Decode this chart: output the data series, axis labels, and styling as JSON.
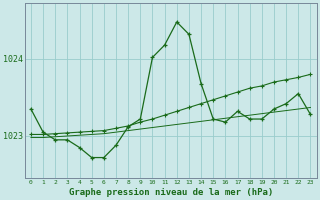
{
  "background_color": "#cce8e8",
  "grid_color": "#99cccc",
  "line_color": "#1a6b1a",
  "xlabel": "Graphe pression niveau de la mer (hPa)",
  "xlabel_fontsize": 6.5,
  "ytick_labels": [
    "1023",
    "1024"
  ],
  "ytick_values": [
    1023.0,
    1024.0
  ],
  "ylim": [
    1022.45,
    1024.72
  ],
  "xlim": [
    -0.5,
    23.5
  ],
  "line1_y": [
    1023.35,
    1023.05,
    1022.95,
    1022.95,
    1022.85,
    1022.72,
    1022.72,
    1022.88,
    1023.12,
    1023.22,
    1024.02,
    1024.18,
    1024.48,
    1024.32,
    1023.68,
    1023.22,
    1023.18,
    1023.32,
    1023.22,
    1023.22,
    1023.35,
    1023.42,
    1023.55,
    1023.28
  ],
  "line2_y": [
    1023.02,
    1023.02,
    1023.03,
    1023.04,
    1023.05,
    1023.06,
    1023.07,
    1023.1,
    1023.13,
    1023.18,
    1023.22,
    1023.27,
    1023.32,
    1023.37,
    1023.42,
    1023.47,
    1023.52,
    1023.57,
    1023.62,
    1023.65,
    1023.7,
    1023.73,
    1023.76,
    1023.8
  ],
  "line3_y": [
    1022.98,
    1022.98,
    1022.99,
    1023.0,
    1023.01,
    1023.02,
    1023.03,
    1023.05,
    1023.07,
    1023.09,
    1023.11,
    1023.13,
    1023.15,
    1023.17,
    1023.19,
    1023.21,
    1023.23,
    1023.25,
    1023.27,
    1023.29,
    1023.31,
    1023.33,
    1023.35,
    1023.37
  ]
}
